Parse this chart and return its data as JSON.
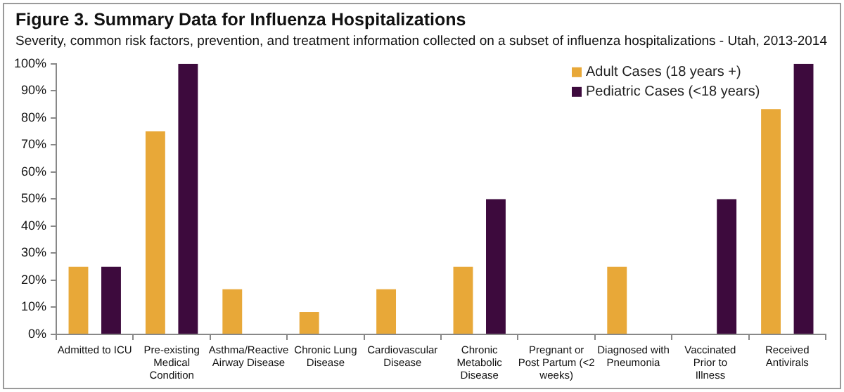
{
  "chart_data": {
    "type": "bar",
    "title": "Figure 3. Summary Data for Influenza Hospitalizations",
    "subtitle": "Severity, common risk factors, prevention, and treatment information collected on a subset of influenza hospitalizations  - Utah, 2013-2014",
    "categories": [
      "Admitted to ICU",
      "Pre-existing Medical Condition",
      "Asthma/Reactive Airway Disease",
      "Chronic Lung Disease",
      "Cardiovascular Disease",
      "Chronic Metabolic Disease",
      "Pregnant or Post Partum (<2 weeks)",
      "Diagnosed with Pneumonia",
      "Vaccinated Prior to Illness",
      "Received Antivirals"
    ],
    "series": [
      {
        "name": "Adult Cases (18 years +)",
        "color": "#e8a838",
        "values": [
          25,
          75,
          16.7,
          8.3,
          16.7,
          25,
          0,
          25,
          0,
          83.3
        ]
      },
      {
        "name": "Pediatric Cases (<18 years)",
        "color": "#3d0a3d",
        "values": [
          25,
          100,
          0,
          0,
          0,
          50,
          0,
          0,
          50,
          100
        ]
      }
    ],
    "ylim": [
      0,
      100
    ],
    "yticks": [
      {
        "value": 0,
        "label": "0%"
      },
      {
        "value": 10,
        "label": "10%"
      },
      {
        "value": 20,
        "label": "20%"
      },
      {
        "value": 30,
        "label": "30%"
      },
      {
        "value": 40,
        "label": "40%"
      },
      {
        "value": 50,
        "label": "50%"
      },
      {
        "value": 60,
        "label": "60%"
      },
      {
        "value": 70,
        "label": "70%"
      },
      {
        "value": 80,
        "label": "80%"
      },
      {
        "value": 90,
        "label": "90%"
      },
      {
        "value": 100,
        "label": "100%"
      }
    ],
    "grid": false,
    "legend": "top right"
  }
}
